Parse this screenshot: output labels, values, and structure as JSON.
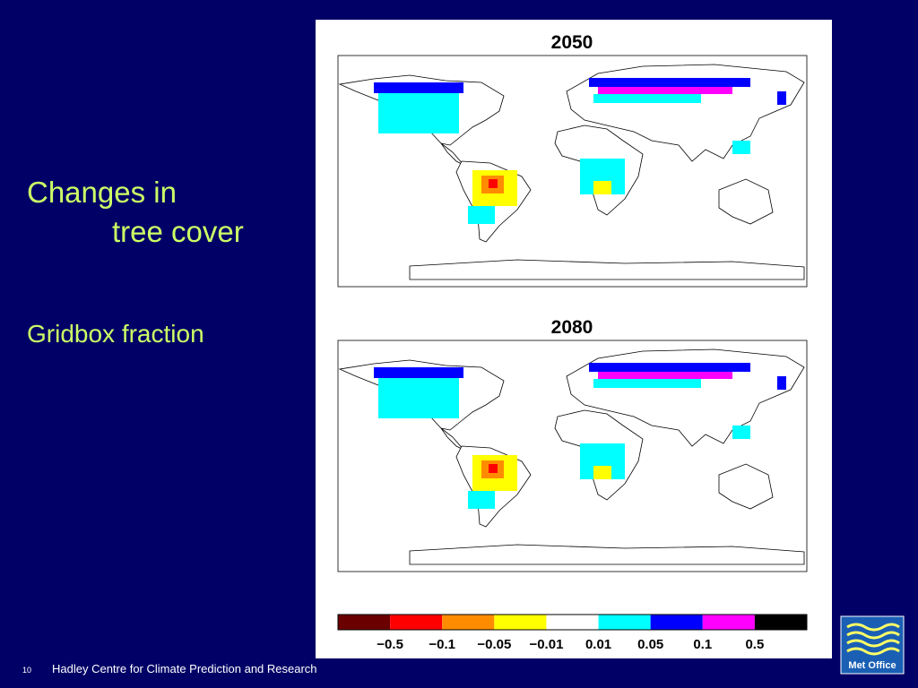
{
  "slide": {
    "title_line1": "Changes in",
    "title_line2": "tree cover",
    "subtitle": "Gridbox fraction",
    "maps": [
      {
        "title": "2050"
      },
      {
        "title": "2080"
      }
    ],
    "legend": {
      "colors": [
        "#6b0000",
        "#ff0000",
        "#ff8c00",
        "#ffff00",
        "#ffffff",
        "#00ffff",
        "#0000ff",
        "#ff00ff",
        "#000000"
      ],
      "labels": [
        "−0.5",
        "−0.1",
        "−0.05",
        "−0.01",
        "0.01",
        "0.05",
        "0.1",
        "0.5"
      ]
    },
    "page_number": "10",
    "footer": "Hadley Centre for Climate Prediction and Research",
    "logo_text": "Met Office"
  }
}
